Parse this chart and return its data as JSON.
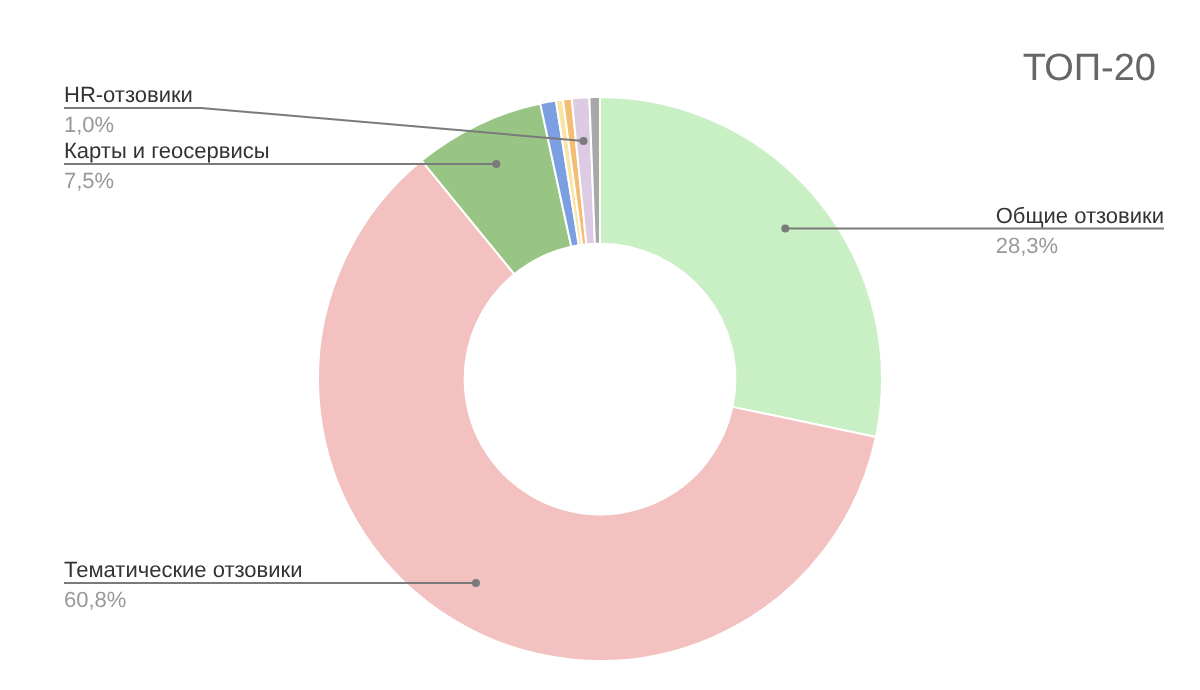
{
  "chart_data": {
    "type": "donut",
    "title": "ТОП-20",
    "categories": [
      "Общие отзовики",
      "Тематические отзовики",
      "Карты и геосервисы",
      null,
      null,
      null,
      "HR-отзовики",
      null
    ],
    "values": [
      28.3,
      60.8,
      7.5,
      0.9,
      0.4,
      0.5,
      1.0,
      0.6
    ],
    "colors": [
      "#c8f0c4",
      "#f2c1c0",
      "#98c584",
      "#7b9fe0",
      "#fbe3a6",
      "#f3bd73",
      "#dccbe3",
      "#a8a8a8"
    ],
    "value_labels": [
      "28,3%",
      "60,8%",
      "7,5%",
      null,
      null,
      null,
      "1,0%",
      null
    ],
    "legend": false
  }
}
